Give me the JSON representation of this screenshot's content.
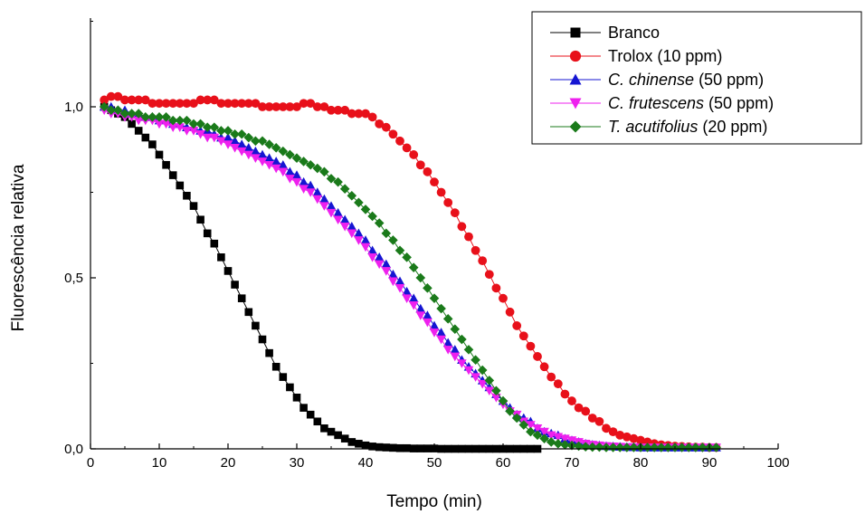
{
  "chart_data": {
    "type": "scatter",
    "xlabel": "Tempo (min)",
    "ylabel": "Fluorescência relativa",
    "xlim": [
      0,
      100
    ],
    "ylim": [
      0,
      1.25
    ],
    "x_ticks": [
      0,
      10,
      20,
      30,
      40,
      50,
      60,
      70,
      80,
      90,
      100
    ],
    "x_tick_labels": [
      "0",
      "10",
      "20",
      "30",
      "40",
      "50",
      "60",
      "70",
      "80",
      "90",
      "100"
    ],
    "y_ticks": [
      0,
      0.5,
      1.0
    ],
    "y_tick_labels": [
      "0,0",
      "0,5",
      "1,0"
    ],
    "legend_position": "top-right",
    "grid": false,
    "x_step": 1,
    "series": [
      {
        "name": "Branco",
        "legend_parts": [
          {
            "text": "Branco",
            "italic": false
          }
        ],
        "color": "#000000",
        "marker": "square",
        "x_start": 2,
        "values": [
          1.0,
          0.99,
          0.98,
          0.97,
          0.95,
          0.93,
          0.91,
          0.89,
          0.86,
          0.83,
          0.8,
          0.77,
          0.74,
          0.71,
          0.67,
          0.63,
          0.6,
          0.56,
          0.52,
          0.48,
          0.44,
          0.4,
          0.36,
          0.32,
          0.28,
          0.24,
          0.21,
          0.18,
          0.15,
          0.12,
          0.1,
          0.08,
          0.06,
          0.05,
          0.04,
          0.03,
          0.02,
          0.015,
          0.01,
          0.007,
          0.005,
          0.004,
          0.003,
          0.002,
          0.002,
          0.001,
          0.001,
          0.001,
          0.001,
          0.0,
          0.0,
          0.0,
          0.0,
          0.0,
          0.0,
          0.0,
          0.0,
          0.0,
          0.0,
          0.0,
          0.0,
          0.0,
          0.0,
          0.0
        ]
      },
      {
        "name": "Trolox (10 ppm)",
        "legend_parts": [
          {
            "text": "Trolox (10 ppm)",
            "italic": false
          }
        ],
        "color": "#e8101a",
        "marker": "circle",
        "x_start": 2,
        "values": [
          1.02,
          1.03,
          1.03,
          1.02,
          1.02,
          1.02,
          1.02,
          1.01,
          1.01,
          1.01,
          1.01,
          1.01,
          1.01,
          1.01,
          1.02,
          1.02,
          1.02,
          1.01,
          1.01,
          1.01,
          1.01,
          1.01,
          1.01,
          1.0,
          1.0,
          1.0,
          1.0,
          1.0,
          1.0,
          1.01,
          1.01,
          1.0,
          1.0,
          0.99,
          0.99,
          0.99,
          0.98,
          0.98,
          0.98,
          0.97,
          0.95,
          0.94,
          0.92,
          0.9,
          0.88,
          0.86,
          0.83,
          0.81,
          0.78,
          0.75,
          0.72,
          0.69,
          0.65,
          0.62,
          0.58,
          0.55,
          0.51,
          0.47,
          0.44,
          0.4,
          0.36,
          0.33,
          0.3,
          0.27,
          0.24,
          0.21,
          0.19,
          0.16,
          0.14,
          0.12,
          0.11,
          0.09,
          0.08,
          0.06,
          0.05,
          0.04,
          0.035,
          0.03,
          0.025,
          0.02,
          0.015,
          0.012,
          0.01,
          0.008,
          0.007,
          0.006,
          0.005,
          0.005,
          0.004,
          0.004
        ]
      },
      {
        "name": "C. chinense (50 ppm)",
        "legend_parts": [
          {
            "text": "C. chinense",
            "italic": true
          },
          {
            "text": " (50 ppm)",
            "italic": false
          }
        ],
        "color": "#1515d2",
        "marker": "triangle-up",
        "x_start": 2,
        "values": [
          1.0,
          1.0,
          0.99,
          0.99,
          0.98,
          0.98,
          0.97,
          0.97,
          0.96,
          0.96,
          0.95,
          0.95,
          0.94,
          0.94,
          0.93,
          0.93,
          0.92,
          0.91,
          0.91,
          0.9,
          0.89,
          0.88,
          0.87,
          0.86,
          0.85,
          0.84,
          0.83,
          0.81,
          0.8,
          0.78,
          0.77,
          0.75,
          0.73,
          0.71,
          0.69,
          0.67,
          0.65,
          0.63,
          0.61,
          0.58,
          0.56,
          0.54,
          0.51,
          0.49,
          0.46,
          0.44,
          0.41,
          0.39,
          0.36,
          0.34,
          0.31,
          0.29,
          0.26,
          0.24,
          0.22,
          0.2,
          0.18,
          0.16,
          0.14,
          0.12,
          0.1,
          0.09,
          0.08,
          0.06,
          0.05,
          0.045,
          0.04,
          0.03,
          0.025,
          0.02,
          0.015,
          0.012,
          0.01,
          0.008,
          0.007,
          0.006,
          0.005,
          0.005,
          0.004,
          0.004,
          0.004,
          0.004,
          0.004,
          0.004,
          0.004,
          0.004,
          0.004,
          0.004,
          0.004,
          0.004
        ]
      },
      {
        "name": "C. frutescens (50 ppm)",
        "legend_parts": [
          {
            "text": "C. frutescens",
            "italic": true
          },
          {
            "text": " (50 ppm)",
            "italic": false
          }
        ],
        "color": "#ee20ee",
        "marker": "triangle-down",
        "x_start": 2,
        "values": [
          0.99,
          0.98,
          0.98,
          0.97,
          0.97,
          0.96,
          0.96,
          0.96,
          0.95,
          0.95,
          0.94,
          0.94,
          0.93,
          0.93,
          0.92,
          0.91,
          0.91,
          0.9,
          0.89,
          0.88,
          0.87,
          0.86,
          0.85,
          0.84,
          0.83,
          0.82,
          0.81,
          0.79,
          0.78,
          0.76,
          0.75,
          0.73,
          0.71,
          0.69,
          0.67,
          0.65,
          0.63,
          0.61,
          0.59,
          0.56,
          0.54,
          0.52,
          0.49,
          0.47,
          0.44,
          0.42,
          0.39,
          0.37,
          0.34,
          0.32,
          0.29,
          0.27,
          0.25,
          0.23,
          0.21,
          0.19,
          0.17,
          0.15,
          0.13,
          0.11,
          0.1,
          0.08,
          0.07,
          0.06,
          0.05,
          0.04,
          0.035,
          0.03,
          0.025,
          0.02,
          0.015,
          0.012,
          0.01,
          0.008,
          0.007,
          0.006,
          0.005,
          0.005,
          0.004,
          0.004,
          0.004,
          0.004,
          0.004,
          0.004,
          0.004,
          0.004,
          0.004,
          0.004,
          0.004,
          0.004
        ]
      },
      {
        "name": "T. acutifolius (20 ppm)",
        "legend_parts": [
          {
            "text": "T. acutifolius",
            "italic": true
          },
          {
            "text": " (20 ppm)",
            "italic": false
          }
        ],
        "color": "#1a7a1a",
        "marker": "diamond",
        "x_start": 2,
        "values": [
          1.0,
          0.99,
          0.99,
          0.98,
          0.98,
          0.98,
          0.97,
          0.97,
          0.97,
          0.97,
          0.96,
          0.96,
          0.96,
          0.95,
          0.95,
          0.94,
          0.94,
          0.93,
          0.93,
          0.92,
          0.92,
          0.91,
          0.9,
          0.9,
          0.89,
          0.88,
          0.87,
          0.86,
          0.85,
          0.84,
          0.83,
          0.82,
          0.81,
          0.79,
          0.78,
          0.76,
          0.74,
          0.72,
          0.7,
          0.68,
          0.66,
          0.63,
          0.61,
          0.58,
          0.56,
          0.53,
          0.5,
          0.47,
          0.44,
          0.41,
          0.38,
          0.35,
          0.32,
          0.29,
          0.26,
          0.23,
          0.2,
          0.17,
          0.14,
          0.11,
          0.09,
          0.07,
          0.05,
          0.04,
          0.03,
          0.02,
          0.015,
          0.012,
          0.01,
          0.008,
          0.006,
          0.005,
          0.005,
          0.004,
          0.004,
          0.004,
          0.004,
          0.004,
          0.004,
          0.004,
          0.004,
          0.004,
          0.004,
          0.004,
          0.004,
          0.004,
          0.004,
          0.004,
          0.004,
          0.004
        ]
      }
    ]
  }
}
